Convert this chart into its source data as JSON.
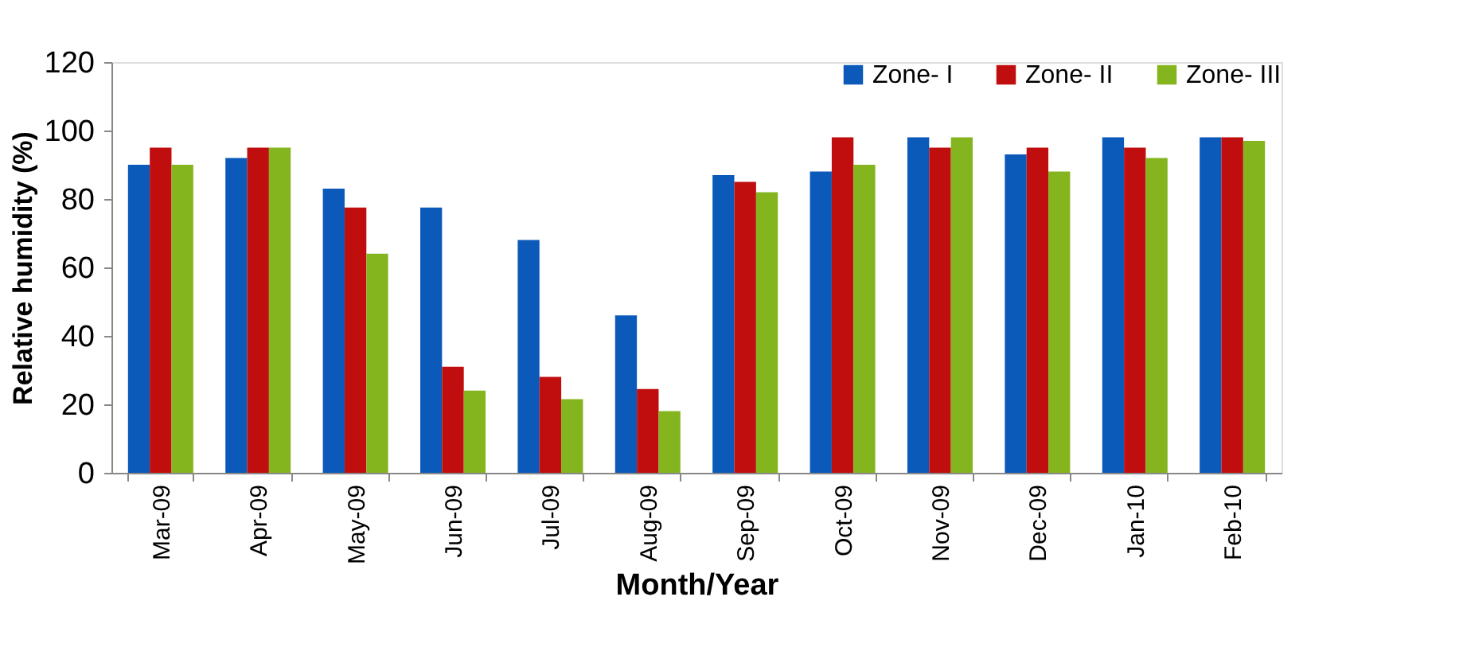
{
  "chart_data": {
    "type": "bar",
    "xlabel": "Month/Year",
    "ylabel": "Relative humidity (%)",
    "categories": [
      "Mar-09",
      "Apr-09",
      "May-09",
      "Jun-09",
      "Jul-09",
      "Aug-09",
      "Sep-09",
      "Oct-09",
      "Nov-09",
      "Dec-09",
      "Jan-10",
      "Feb-10"
    ],
    "series": [
      {
        "name": "Zone- I",
        "color": "#0b59b8",
        "values": [
          90,
          92,
          83,
          77.5,
          68,
          46,
          87,
          88,
          98,
          93,
          98,
          98
        ]
      },
      {
        "name": "Zone- II",
        "color": "#c00d0d",
        "values": [
          95,
          95,
          77.5,
          31,
          28,
          24.5,
          85,
          98,
          95,
          95,
          95,
          98
        ]
      },
      {
        "name": "Zone- III",
        "color": "#84b51e",
        "values": [
          90,
          95,
          64,
          24,
          21.5,
          18,
          82,
          90,
          98,
          88,
          92,
          97
        ]
      }
    ],
    "ylim": [
      0,
      120
    ],
    "yticks": [
      0,
      20,
      40,
      60,
      80,
      100,
      120
    ],
    "grid": false,
    "legend": "top right"
  }
}
